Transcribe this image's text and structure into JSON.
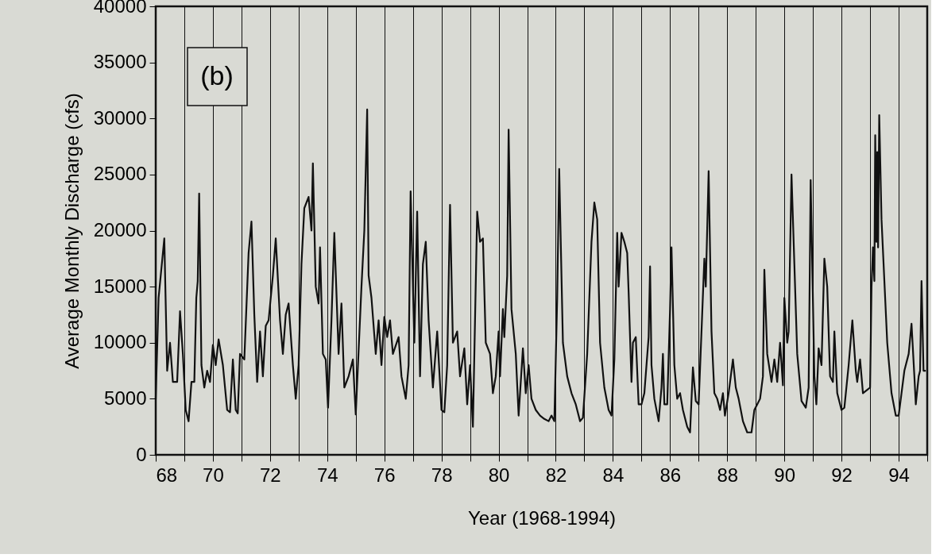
{
  "chart_data": {
    "type": "line",
    "xlabel": "Year (1968-1994)",
    "ylabel": "Average Monthly Discharge (cfs)",
    "annotations": [
      "(b)"
    ],
    "xlim": [
      68,
      95
    ],
    "ylim": [
      0,
      40000
    ],
    "xticks": [
      68,
      {
        "value": 69,
        "label": null
      },
      70,
      {
        "value": 71,
        "label": null
      },
      72,
      {
        "value": 73,
        "label": null
      },
      74,
      {
        "value": 75,
        "label": null
      },
      76,
      {
        "value": 77,
        "label": null
      },
      78,
      {
        "value": 79,
        "label": null
      },
      80,
      {
        "value": 81,
        "label": null
      },
      82,
      {
        "value": 83,
        "label": null
      },
      84,
      {
        "value": 85,
        "label": null
      },
      86,
      {
        "value": 87,
        "label": null
      },
      88,
      {
        "value": 89,
        "label": null
      },
      90,
      {
        "value": 91,
        "label": null
      },
      92,
      {
        "value": 93,
        "label": null
      },
      94,
      {
        "value": 95,
        "label": null
      }
    ],
    "yticks": [
      0,
      5000,
      10000,
      15000,
      20000,
      25000,
      30000,
      35000,
      40000
    ],
    "grid": "x",
    "marker": "none",
    "line_style": "solid",
    "x": [
      68.0,
      68.1,
      68.3,
      68.4,
      68.5,
      68.6,
      68.75,
      68.85,
      68.95,
      69.05,
      69.15,
      69.25,
      69.35,
      69.42,
      69.47,
      69.52,
      69.6,
      69.7,
      69.8,
      69.9,
      70.0,
      70.1,
      70.2,
      70.35,
      70.5,
      70.6,
      70.7,
      70.8,
      70.87,
      70.95,
      71.1,
      71.25,
      71.35,
      71.45,
      71.55,
      71.65,
      71.75,
      71.85,
      71.95,
      72.1,
      72.2,
      72.35,
      72.45,
      72.55,
      72.65,
      72.8,
      72.9,
      73.0,
      73.1,
      73.2,
      73.35,
      73.45,
      73.5,
      73.6,
      73.7,
      73.75,
      73.85,
      73.95,
      74.03,
      74.15,
      74.25,
      74.4,
      74.5,
      74.6,
      74.75,
      74.9,
      75.0,
      75.2,
      75.3,
      75.4,
      75.45,
      75.55,
      75.7,
      75.8,
      75.9,
      76.0,
      76.1,
      76.2,
      76.3,
      76.5,
      76.6,
      76.75,
      76.85,
      76.92,
      77.05,
      77.15,
      77.25,
      77.35,
      77.45,
      77.55,
      77.7,
      77.85,
      78.0,
      78.1,
      78.2,
      78.3,
      78.4,
      78.55,
      78.65,
      78.8,
      78.9,
      79.0,
      79.1,
      79.25,
      79.35,
      79.45,
      79.55,
      79.7,
      79.8,
      79.9,
      80.0,
      80.05,
      80.15,
      80.2,
      80.3,
      80.35,
      80.45,
      80.6,
      80.7,
      80.85,
      80.95,
      81.05,
      81.15,
      81.3,
      81.45,
      81.6,
      81.75,
      81.85,
      81.95,
      82.05,
      82.12,
      82.25,
      82.4,
      82.55,
      82.7,
      82.85,
      82.95,
      83.1,
      83.25,
      83.35,
      83.45,
      83.55,
      83.7,
      83.85,
      83.95,
      84.05,
      84.15,
      84.2,
      84.3,
      84.4,
      84.5,
      84.55,
      84.65,
      84.7,
      84.8,
      84.9,
      85.0,
      85.1,
      85.25,
      85.3,
      85.35,
      85.45,
      85.6,
      85.7,
      85.75,
      85.8,
      85.9,
      86.0,
      86.05,
      86.15,
      86.25,
      86.35,
      86.45,
      86.6,
      86.7,
      86.8,
      86.9,
      87.0,
      87.1,
      87.2,
      87.25,
      87.35,
      87.45,
      87.55,
      87.65,
      87.75,
      87.85,
      87.92,
      88.05,
      88.2,
      88.3,
      88.4,
      88.55,
      88.7,
      88.85,
      88.95,
      89.05,
      89.15,
      89.25,
      89.3,
      89.4,
      89.55,
      89.65,
      89.75,
      89.85,
      89.95,
      90.0,
      90.1,
      90.15,
      90.25,
      90.35,
      90.45,
      90.6,
      90.75,
      90.85,
      90.92,
      91.05,
      91.12,
      91.2,
      91.3,
      91.4,
      91.5,
      91.6,
      91.7,
      91.75,
      91.85,
      92.0,
      92.1,
      92.25,
      92.38,
      92.5,
      92.55,
      92.65,
      92.75,
      92.9,
      93.0,
      93.05,
      93.1,
      93.15,
      93.18,
      93.22,
      93.25,
      93.28,
      93.32,
      93.4,
      93.6,
      93.75,
      93.9,
      94.0,
      94.2,
      94.35,
      94.45,
      94.55,
      94.6,
      94.7,
      94.75,
      94.8,
      94.87,
      94.95
    ],
    "series": [
      {
        "color": "#111111",
        "values": [
          5000,
          14000,
          19300,
          7500,
          10000,
          6500,
          6500,
          12800,
          9000,
          4000,
          3000,
          6500,
          6500,
          14000,
          15500,
          23300,
          8000,
          6000,
          7500,
          6500,
          9800,
          8000,
          10300,
          8000,
          4000,
          3800,
          8500,
          4000,
          3700,
          9000,
          8500,
          18000,
          20800,
          12500,
          6500,
          11000,
          7000,
          11500,
          12000,
          16000,
          19300,
          12000,
          9000,
          12500,
          13500,
          8000,
          5000,
          8000,
          17000,
          22000,
          23000,
          20000,
          26000,
          15000,
          13500,
          18500,
          9000,
          8500,
          4200,
          12000,
          19800,
          9000,
          13500,
          6000,
          7000,
          8500,
          3600,
          15000,
          20000,
          30800,
          16000,
          14000,
          9000,
          12000,
          8000,
          12300,
          10500,
          12000,
          9000,
          10500,
          7000,
          5000,
          8000,
          23500,
          10000,
          21700,
          7000,
          17000,
          19000,
          12000,
          6000,
          11000,
          4000,
          3800,
          8000,
          22300,
          10000,
          11000,
          7000,
          9500,
          4500,
          8000,
          2500,
          21700,
          19000,
          19300,
          10000,
          9000,
          5500,
          7000,
          11000,
          7000,
          13000,
          10500,
          16000,
          29000,
          13000,
          9000,
          3500,
          9500,
          5500,
          8000,
          5000,
          4000,
          3500,
          3200,
          3000,
          3500,
          3000,
          14000,
          25500,
          10000,
          7000,
          5500,
          4500,
          3000,
          3300,
          9000,
          19000,
          22500,
          21000,
          10000,
          6000,
          4000,
          3500,
          8500,
          19800,
          15000,
          19800,
          19000,
          18000,
          14500,
          6500,
          10000,
          10500,
          4500,
          4500,
          5500,
          10500,
          16800,
          8000,
          5000,
          3000,
          6000,
          9000,
          4500,
          4500,
          13000,
          18500,
          8000,
          5000,
          5500,
          4000,
          2500,
          2000,
          7800,
          4800,
          4500,
          11000,
          17500,
          15000,
          25300,
          11000,
          5500,
          5000,
          4000,
          5500,
          3500,
          5500,
          8500,
          6000,
          5000,
          3000,
          2000,
          2000,
          4000,
          4500,
          5000,
          7000,
          16500,
          9000,
          6500,
          8500,
          6500,
          10000,
          6200,
          14000,
          10000,
          11000,
          25000,
          17000,
          9000,
          4800,
          4200,
          6000,
          24500,
          7000,
          4500,
          9500,
          8000,
          17500,
          15000,
          7000,
          6500,
          11000,
          5500,
          4000,
          4200,
          8000,
          12000,
          7500,
          6500,
          8500,
          5500,
          5800,
          6000,
          15000,
          18500,
          15500,
          28500,
          19000,
          27000,
          18500,
          30300,
          21000,
          10000,
          5500,
          3500,
          3500,
          7500,
          9000,
          11700,
          7000,
          4500,
          7000,
          7500,
          15500,
          7500,
          7500
        ]
      }
    ]
  }
}
